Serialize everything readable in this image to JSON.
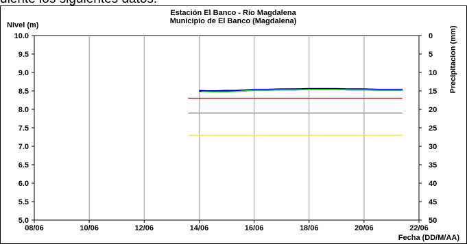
{
  "page": {
    "top_fragment": "diente los siguientes datos."
  },
  "chart_data": {
    "type": "line",
    "title": "Estación El Banco - Río Magdalena",
    "subtitle": "Municipio de El Banco (Magdalena)",
    "ylabel": "Nivel (m)",
    "y2label": "Precipitacion (mm)",
    "xlabel": "Fecha (DD/M/AA)",
    "xlim": [
      "08/06",
      "22/06"
    ],
    "ylim": [
      5.0,
      10.0
    ],
    "y2lim": [
      0,
      50
    ],
    "y2_inverted": true,
    "x_tick_labels": [
      "08/06",
      "10/06",
      "12/06",
      "14/06",
      "16/06",
      "18/06",
      "20/06",
      "22/06"
    ],
    "y_tick_labels": [
      "5.0",
      "5.5",
      "6.0",
      "6.5",
      "7.0",
      "7.5",
      "8.0",
      "8.5",
      "9.0",
      "9.5",
      "10.0"
    ],
    "y2_tick_labels": [
      "50",
      "45",
      "40",
      "35",
      "30",
      "25",
      "20",
      "15",
      "10",
      "5",
      "0"
    ],
    "grid": {
      "vertical": true,
      "horizontal": false
    },
    "series": [
      {
        "color": "#0000cc",
        "x": [
          14.0,
          14.3,
          14.6,
          15.0,
          15.3,
          15.6,
          16.0,
          16.5,
          17.0,
          17.5,
          18.0,
          18.5,
          19.0,
          19.5,
          20.0,
          20.5,
          21.0,
          21.4
        ],
        "y": [
          8.5,
          8.49,
          8.49,
          8.5,
          8.5,
          8.51,
          8.53,
          8.53,
          8.54,
          8.54,
          8.55,
          8.55,
          8.55,
          8.54,
          8.54,
          8.53,
          8.53,
          8.53
        ]
      },
      {
        "color": "#33cc33",
        "x": [
          14.1,
          14.5,
          15.0,
          15.5,
          16.0,
          16.5,
          17.0,
          17.5,
          18.0,
          18.5,
          19.0,
          19.5,
          20.0,
          20.5,
          21.0,
          21.4
        ],
        "y": [
          8.48,
          8.47,
          8.47,
          8.49,
          8.52,
          8.52,
          8.53,
          8.53,
          8.54,
          8.54,
          8.54,
          8.53,
          8.53,
          8.52,
          8.52,
          8.52
        ]
      }
    ],
    "reference_lines": [
      {
        "color": "#cc0000",
        "y": 8.3,
        "x_start": 13.6,
        "x_end": 21.4
      },
      {
        "color": "#997755",
        "y": 7.9,
        "x_start": 13.6,
        "x_end": 21.4
      },
      {
        "color": "#ffee00",
        "y": 7.3,
        "x_start": 13.6,
        "x_end": 21.4
      }
    ]
  }
}
